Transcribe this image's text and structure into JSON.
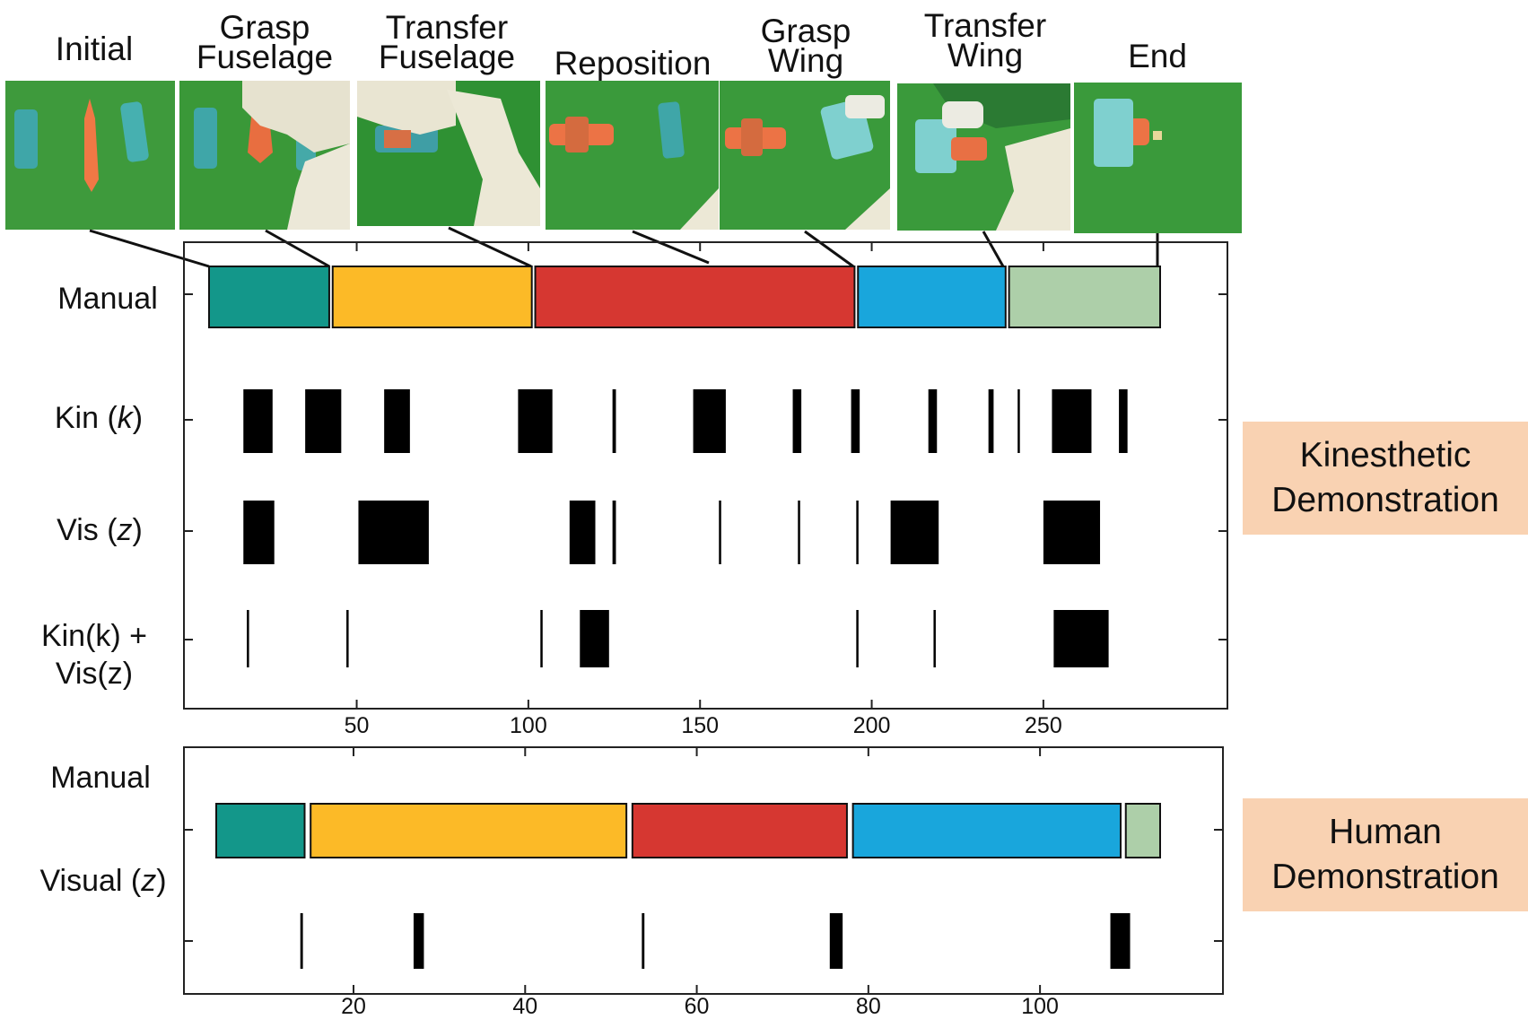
{
  "phases": {
    "initial": "Initial",
    "grasp_fuselage": [
      "Grasp",
      "Fuselage"
    ],
    "transfer_fuselage": [
      "Transfer",
      "Fuselage"
    ],
    "reposition": "Reposition",
    "grasp_wing": [
      "Grasp",
      "Wing"
    ],
    "transfer_wing": [
      "Transfer",
      "Wing"
    ],
    "end": "End"
  },
  "colors": {
    "phase1": "#13978a",
    "phase2": "#fcba27",
    "phase3": "#d63731",
    "phase4": "#19a6dc",
    "phase5": "#adcfa9",
    "tag": "#f9d2b2"
  },
  "kinesthetic": {
    "tag": [
      "Kinesthetic",
      "Demonstration"
    ],
    "rows": {
      "manual": "Manual",
      "kin": {
        "prefix": "Kin (",
        "var": "k",
        "suffix": ")"
      },
      "vis": {
        "prefix": "Vis (",
        "var": "z",
        "suffix": ")"
      },
      "combined": [
        "Kin(k) +",
        "Vis(z)"
      ]
    },
    "xticks": [
      50,
      100,
      150,
      200,
      250
    ],
    "manual_segments": [
      [
        7,
        42,
        "phase1"
      ],
      [
        43,
        101,
        "phase2"
      ],
      [
        102,
        195,
        "phase3"
      ],
      [
        196,
        239,
        "phase4"
      ],
      [
        240,
        284,
        "phase5"
      ]
    ],
    "kin_events": [
      [
        17,
        25.5
      ],
      [
        35,
        45.5
      ],
      [
        58,
        65.5
      ],
      [
        97,
        107
      ],
      [
        124.5,
        125.5
      ],
      [
        148,
        157.5
      ],
      [
        177,
        179.5
      ],
      [
        194,
        196.5
      ],
      [
        216.5,
        219
      ],
      [
        234,
        235.5
      ],
      [
        242.5,
        243
      ],
      [
        252.5,
        264
      ],
      [
        272,
        274.5
      ]
    ],
    "vis_events": [
      [
        17,
        26
      ],
      [
        50.5,
        71
      ],
      [
        112,
        119.5
      ],
      [
        124.5,
        125.5
      ],
      [
        155.5,
        156
      ],
      [
        178.5,
        179
      ],
      [
        195.5,
        196
      ],
      [
        205.5,
        219.5
      ],
      [
        250,
        266.5
      ]
    ],
    "combined_events": [
      [
        18,
        18.5
      ],
      [
        47,
        47.5
      ],
      [
        103.5,
        104
      ],
      [
        115,
        123.5
      ],
      [
        195.5,
        196
      ],
      [
        218,
        218.5
      ],
      [
        253,
        269
      ]
    ]
  },
  "human": {
    "tag": [
      "Human",
      "Demonstration"
    ],
    "rows": {
      "manual": "Manual",
      "visual": {
        "prefix": "Visual (",
        "var": "z",
        "suffix": ")"
      }
    },
    "xticks": [
      20,
      40,
      60,
      80,
      100
    ],
    "manual_segments": [
      [
        4,
        14.3,
        "phase1"
      ],
      [
        15,
        51.8,
        "phase2"
      ],
      [
        52.5,
        77.5,
        "phase3"
      ],
      [
        78.2,
        109.4,
        "phase4"
      ],
      [
        110,
        114,
        "phase5"
      ]
    ],
    "visual_events": [
      [
        13.8,
        14.1
      ],
      [
        27,
        28.2
      ],
      [
        53.6,
        53.9
      ],
      [
        75.5,
        77
      ],
      [
        108.2,
        110.5
      ]
    ]
  }
}
